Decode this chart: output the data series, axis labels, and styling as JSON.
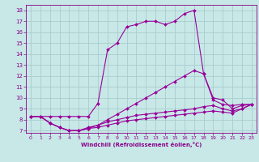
{
  "title": "",
  "xlabel": "Windchill (Refroidissement éolien,°C)",
  "bg_color": "#c8e8e8",
  "line_color": "#990099",
  "grid_color": "#a8cccc",
  "ylim": [
    6.8,
    18.5
  ],
  "xlim": [
    -0.5,
    23.5
  ],
  "yticks": [
    7,
    8,
    9,
    10,
    11,
    12,
    13,
    14,
    15,
    16,
    17,
    18
  ],
  "xticks": [
    0,
    1,
    2,
    3,
    4,
    5,
    6,
    7,
    8,
    9,
    10,
    11,
    12,
    13,
    14,
    15,
    16,
    17,
    18,
    19,
    20,
    21,
    22,
    23
  ],
  "lines": [
    {
      "x": [
        0,
        1,
        2,
        3,
        4,
        5,
        6,
        7,
        8,
        9,
        10,
        11,
        12,
        13,
        14,
        15,
        16,
        17,
        18,
        19,
        20,
        21,
        22,
        23
      ],
      "y": [
        8.3,
        8.3,
        8.3,
        8.3,
        8.3,
        8.3,
        8.3,
        9.5,
        14.4,
        15.0,
        16.5,
        16.7,
        17.0,
        17.0,
        16.7,
        17.0,
        17.7,
        18.0,
        12.2,
        9.8,
        9.4,
        9.3,
        9.4,
        9.4
      ]
    },
    {
      "x": [
        0,
        1,
        2,
        3,
        4,
        5,
        6,
        7,
        8,
        9,
        10,
        11,
        12,
        13,
        14,
        15,
        16,
        17,
        18,
        19,
        20,
        21,
        22,
        23
      ],
      "y": [
        8.3,
        8.3,
        7.7,
        7.3,
        7.0,
        7.0,
        7.3,
        7.5,
        8.0,
        8.5,
        9.0,
        9.5,
        10.0,
        10.5,
        11.0,
        11.5,
        12.0,
        12.5,
        12.2,
        10.0,
        9.8,
        9.0,
        9.3,
        9.4
      ]
    },
    {
      "x": [
        0,
        1,
        2,
        3,
        4,
        5,
        6,
        7,
        8,
        9,
        10,
        11,
        12,
        13,
        14,
        15,
        16,
        17,
        18,
        19,
        20,
        21,
        22,
        23
      ],
      "y": [
        8.3,
        8.3,
        7.7,
        7.3,
        7.0,
        7.0,
        7.2,
        7.5,
        7.8,
        8.0,
        8.2,
        8.4,
        8.5,
        8.6,
        8.7,
        8.8,
        8.9,
        9.0,
        9.2,
        9.3,
        9.0,
        8.8,
        9.0,
        9.4
      ]
    },
    {
      "x": [
        0,
        1,
        2,
        3,
        4,
        5,
        6,
        7,
        8,
        9,
        10,
        11,
        12,
        13,
        14,
        15,
        16,
        17,
        18,
        19,
        20,
        21,
        22,
        23
      ],
      "y": [
        8.3,
        8.3,
        7.7,
        7.3,
        7.0,
        7.0,
        7.2,
        7.3,
        7.5,
        7.7,
        7.9,
        8.0,
        8.1,
        8.2,
        8.3,
        8.4,
        8.5,
        8.6,
        8.7,
        8.8,
        8.7,
        8.6,
        9.0,
        9.4
      ]
    }
  ]
}
